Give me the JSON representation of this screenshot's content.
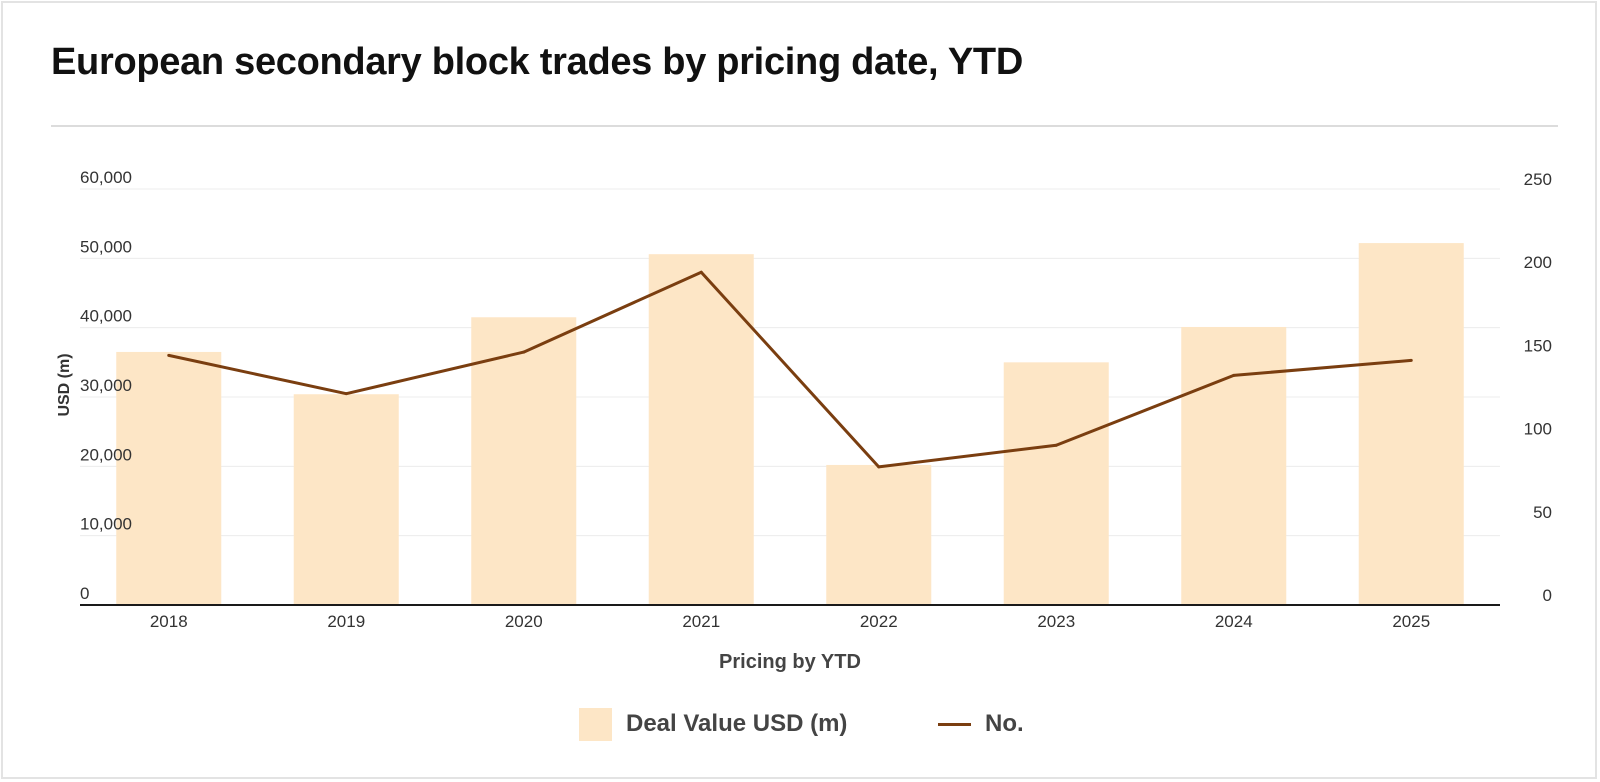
{
  "title": "European secondary block trades by pricing date, YTD",
  "chart_data": {
    "type": "bar",
    "categories": [
      "2018",
      "2019",
      "2020",
      "2021",
      "2022",
      "2023",
      "2024",
      "2025"
    ],
    "series": [
      {
        "name": "Deal Value USD (m)",
        "type": "bar",
        "axis": "left",
        "color": "#fde6c6",
        "values": [
          36500,
          30400,
          41500,
          50600,
          20200,
          35000,
          40100,
          52200
        ]
      },
      {
        "name": "No.",
        "type": "line",
        "axis": "right",
        "color": "#7a3e10",
        "values": [
          150,
          127,
          152,
          200,
          83,
          96,
          138,
          147
        ]
      }
    ],
    "xlabel": "Pricing by YTD",
    "ylabel": "USD (m)",
    "ylim": [
      0,
      60000
    ],
    "yticks": [
      "0",
      "10,000",
      "20,000",
      "30,000",
      "40,000",
      "50,000",
      "60,000"
    ],
    "y2lim": [
      0,
      250
    ],
    "y2ticks": [
      "0",
      "50",
      "100",
      "150",
      "200",
      "250"
    ],
    "grid": true,
    "legend_position": "bottom-center"
  },
  "legend": {
    "bar_label": "Deal Value USD (m)",
    "line_label": "No."
  }
}
